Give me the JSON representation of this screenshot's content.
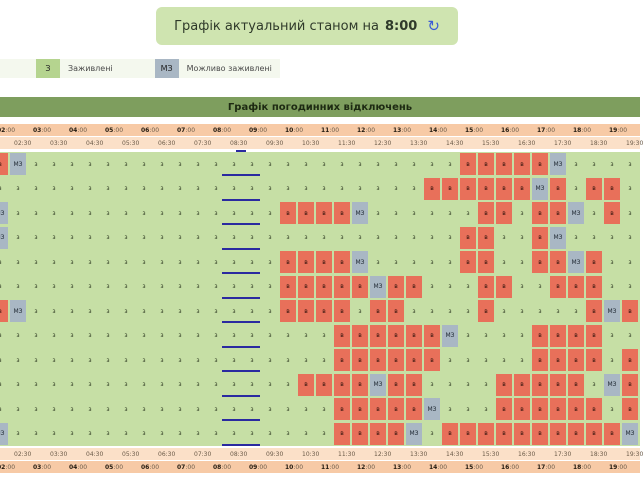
{
  "banner": {
    "text": "Графік актуальний станом на",
    "time": "8:00",
    "refresh_icon": "refresh-icon"
  },
  "legend": {
    "items": [
      {
        "code": "З",
        "label": "Заживлені",
        "color": "#b5d48f"
      },
      {
        "code": "МЗ",
        "label": "Можливо заживлені",
        "color": "#a9b7c4"
      }
    ]
  },
  "table": {
    "title": "Графік погодинних відключень",
    "hours": [
      "02",
      "03",
      "04",
      "05",
      "06",
      "07",
      "08",
      "09",
      "10",
      "11",
      "12",
      "13",
      "14",
      "15",
      "16",
      "17",
      "18",
      "19"
    ],
    "minute_label": ":00",
    "half_hours": [
      "02:30",
      "03:30",
      "04:30",
      "05:30",
      "06:30",
      "07:30",
      "08:30",
      "09:30",
      "10:30",
      "11:30",
      "12:30",
      "13:30",
      "14:30",
      "15:30",
      "16:30",
      "17:30",
      "18:30",
      "19:30"
    ],
    "codes": {
      "z": "з",
      "v": "в",
      "m": "МЗ"
    },
    "colors": {
      "z": "#c6dfa5",
      "v": "#e8705a",
      "m": "#a9b7c4"
    },
    "rows": [
      "vmzzzzzzzzzzzzzzzzzzzzzzzzvvvvvmzzzz",
      "zzzzzzzzzzzzzzzzzzzzzzzzvvvvvvmvzvvz",
      "mzzzzzzzzzzzzzzzvvvvmzzzzzzvvzvvmzvz",
      "mzzzzzzzzzzzzzzzzzzzzzzzzzvvzzvmzzzz",
      "zzzzzzzzzzzzzzzzvvvvmzzzzzvvzzvvmvzz",
      "zzzzzzzzzzzzzzzzvvvvvmvvzzzvvzzvvvzz",
      "vmzzzzzzzzzzzzzzvvvvzvvzzzzvzzzzzvmv",
      "zzzzzzzzzzzzzzzzzzzvvvvvvmzzzzvvvvzz",
      "zzzzzzzzzzzzzzzzzzzvvvvvvzzzzzvvvvzv",
      "zzzzzzzzzzzzzzzzzvvvvmvvzzzzvvvvvzmv",
      "zzzzzzzzzzzzzzzzzzzvvvvvmzzzvvvvvvzv",
      "mzzzzzzzzzzzzzzzzzzvvvvmzvvvvvvvvvvm"
    ]
  }
}
